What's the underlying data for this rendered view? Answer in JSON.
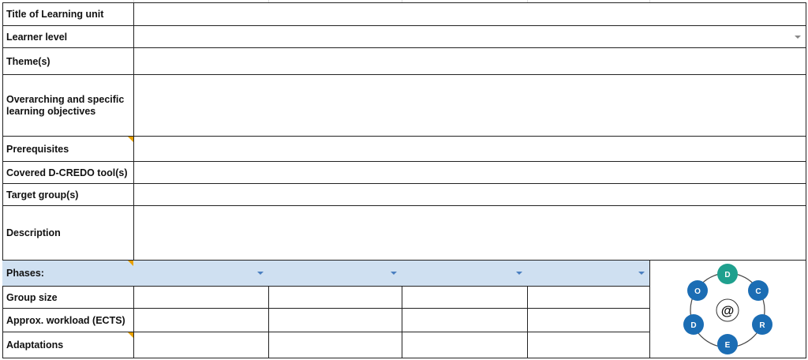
{
  "rows": [
    {
      "label": "Title of Learning unit",
      "value": ""
    },
    {
      "label": "Learner level",
      "value": ""
    },
    {
      "label": "Theme(s)",
      "value": ""
    },
    {
      "label": "Overarching and specific learning objectives",
      "value": ""
    },
    {
      "label": "Prerequisites",
      "value": ""
    },
    {
      "label": "Covered D-CREDO tool(s)",
      "value": ""
    },
    {
      "label": "Target group(s)",
      "value": ""
    },
    {
      "label": "Description",
      "value": ""
    }
  ],
  "phases": {
    "label": "Phases:",
    "values": [
      "",
      "",
      "",
      ""
    ],
    "fill": "#cfe0f1"
  },
  "lower_rows": [
    {
      "label": "Group size"
    },
    {
      "label": "Approx. workload (ECTS)"
    },
    {
      "label": "Adaptations"
    }
  ],
  "logo": {
    "letters": [
      "D",
      "C",
      "R",
      "E",
      "D",
      "O"
    ],
    "center": "@",
    "accent": "#1fa08e",
    "blue": "#1b6db4"
  },
  "colors": {
    "comment_marker": "#e8a000",
    "dropdown_arrow": "#4a7fc0"
  }
}
